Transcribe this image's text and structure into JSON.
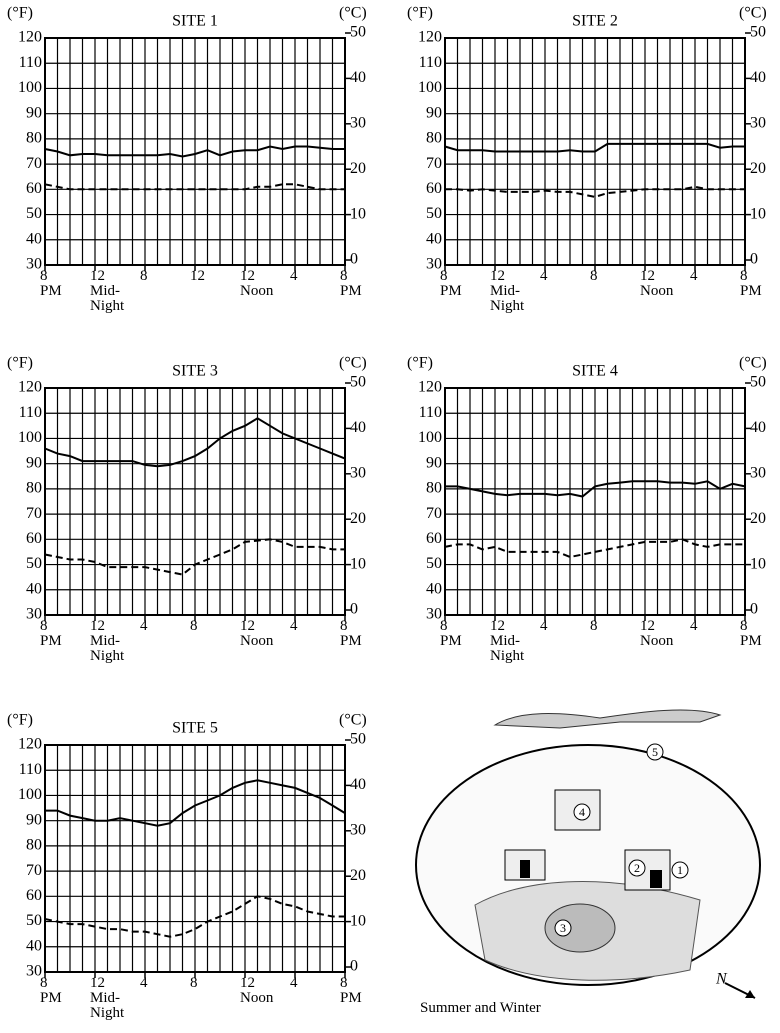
{
  "chart_data": [
    {
      "type": "line",
      "title": "SITE 1",
      "y_label": "(°F)",
      "y2_label": "(°C)",
      "x": [
        0,
        1,
        2,
        3,
        4,
        5,
        6,
        7,
        8,
        9,
        10,
        11,
        12,
        13,
        14,
        15,
        16,
        17,
        18,
        19,
        20,
        21,
        22,
        23,
        24
      ],
      "xlim": [
        0,
        24
      ],
      "xticks": [
        {
          "value": 0,
          "label": "8\nPM"
        },
        {
          "value": 4,
          "label": "12\nMid-\nNight"
        },
        8,
        12,
        {
          "value": 16,
          "label": "12\nNoon"
        },
        {
          "value": 20,
          "label": "4"
        },
        {
          "value": 24,
          "label": "8\nPM"
        }
      ],
      "minor_xticks": [
        0,
        1,
        2,
        3,
        4,
        5,
        6,
        7,
        8,
        9,
        10,
        11,
        12,
        13,
        14,
        15,
        16,
        17,
        18,
        19,
        20,
        21,
        22,
        23,
        24
      ],
      "ylim": [
        30,
        120
      ],
      "yticks": [
        30,
        40,
        50,
        60,
        70,
        80,
        90,
        100,
        110,
        120
      ],
      "y2lim": [
        -1.1,
        48.9
      ],
      "y2ticks": [
        0,
        10,
        20,
        30,
        40,
        50
      ],
      "grid": true,
      "series": [
        {
          "color": "#000",
          "style": "solid",
          "values": [
            76,
            75,
            73.5,
            74,
            74,
            73.5,
            73.5,
            73.5,
            73.5,
            73.5,
            74,
            73,
            74,
            75.5,
            73.5,
            75,
            75.5,
            75.5,
            77,
            76,
            77,
            77,
            76.5,
            76,
            76
          ]
        },
        {
          "color": "#000",
          "style": "dashed",
          "values": [
            62,
            61,
            60,
            60,
            60,
            60,
            60,
            60,
            60,
            60,
            60,
            60,
            60,
            60,
            60,
            60,
            60,
            61,
            61,
            62,
            62,
            61,
            60,
            60,
            60
          ]
        }
      ]
    },
    {
      "type": "line",
      "title": "SITE 2",
      "y_label": "(°F)",
      "y2_label": "(°C)",
      "x": [
        0,
        1,
        2,
        3,
        4,
        5,
        6,
        7,
        8,
        9,
        10,
        11,
        12,
        13,
        14,
        15,
        16,
        17,
        18,
        19,
        20,
        21,
        22,
        23,
        24
      ],
      "xlim": [
        0,
        24
      ],
      "xticks": [
        {
          "value": 0,
          "label": "8\nPM"
        },
        {
          "value": 4,
          "label": "12\nMid-\nNight"
        },
        {
          "value": 8,
          "label": "4"
        },
        {
          "value": 12,
          "label": "8"
        },
        {
          "value": 16,
          "label": "12\nNoon"
        },
        {
          "value": 20,
          "label": "4"
        },
        {
          "value": 24,
          "label": "8\nPM"
        }
      ],
      "minor_xticks": [
        0,
        1,
        2,
        3,
        4,
        5,
        6,
        7,
        8,
        9,
        10,
        11,
        12,
        13,
        14,
        15,
        16,
        17,
        18,
        19,
        20,
        21,
        22,
        23,
        24
      ],
      "ylim": [
        30,
        120
      ],
      "yticks": [
        30,
        40,
        50,
        60,
        70,
        80,
        90,
        100,
        110,
        120
      ],
      "y2lim": [
        -1.1,
        48.9
      ],
      "y2ticks": [
        0,
        10,
        20,
        30,
        40,
        50
      ],
      "grid": true,
      "series": [
        {
          "color": "#000",
          "style": "solid",
          "values": [
            77,
            75.5,
            75.5,
            75.5,
            75,
            75,
            75,
            75,
            75,
            75,
            75.5,
            75,
            75,
            78,
            78,
            78,
            78,
            78,
            78,
            78,
            78,
            78,
            76.5,
            77,
            77
          ]
        },
        {
          "color": "#000",
          "style": "dashed",
          "values": [
            60,
            60,
            59.5,
            60,
            59.5,
            59,
            59,
            59,
            59.5,
            59,
            59,
            58,
            57,
            58.5,
            59,
            59.5,
            60,
            60,
            60,
            60,
            61,
            60,
            60,
            60,
            60
          ]
        }
      ]
    },
    {
      "type": "line",
      "title": "SITE 3",
      "y_label": "(°F)",
      "y2_label": "(°C)",
      "x": [
        0,
        1,
        2,
        3,
        4,
        5,
        6,
        7,
        8,
        9,
        10,
        11,
        12,
        13,
        14,
        15,
        16,
        17,
        18,
        19,
        20,
        21,
        22,
        23,
        24
      ],
      "xlim": [
        0,
        24
      ],
      "xticks": [
        {
          "value": 0,
          "label": "8\nPM"
        },
        {
          "value": 4,
          "label": "12\nMid-\nNight"
        },
        {
          "value": 8,
          "label": "4"
        },
        {
          "value": 12,
          "label": "8"
        },
        {
          "value": 16,
          "label": "12\nNoon"
        },
        {
          "value": 20,
          "label": "4"
        },
        {
          "value": 24,
          "label": "8\nPM"
        }
      ],
      "minor_xticks": [
        0,
        1,
        2,
        3,
        4,
        5,
        6,
        7,
        8,
        9,
        10,
        11,
        12,
        13,
        14,
        15,
        16,
        17,
        18,
        19,
        20,
        21,
        22,
        23,
        24
      ],
      "ylim": [
        30,
        120
      ],
      "yticks": [
        30,
        40,
        50,
        60,
        70,
        80,
        90,
        100,
        110,
        120
      ],
      "y2lim": [
        -1.1,
        48.9
      ],
      "y2ticks": [
        0,
        10,
        20,
        30,
        40,
        50
      ],
      "grid": true,
      "series": [
        {
          "color": "#000",
          "style": "solid",
          "values": [
            96,
            94,
            93,
            91,
            91,
            91,
            91,
            91,
            89.5,
            89,
            89.5,
            91,
            93,
            96,
            100,
            103,
            105,
            108,
            105,
            102,
            100,
            98,
            96,
            94,
            92
          ]
        },
        {
          "color": "#000",
          "style": "dashed",
          "values": [
            54,
            53,
            52,
            52,
            51,
            49,
            49,
            49,
            49,
            48,
            47,
            46,
            50,
            52,
            54,
            56,
            59,
            59.5,
            60,
            59,
            57,
            57,
            57,
            56,
            56
          ]
        }
      ]
    },
    {
      "type": "line",
      "title": "SITE 4",
      "y_label": "(°F)",
      "y2_label": "(°C)",
      "x": [
        0,
        1,
        2,
        3,
        4,
        5,
        6,
        7,
        8,
        9,
        10,
        11,
        12,
        13,
        14,
        15,
        16,
        17,
        18,
        19,
        20,
        21,
        22,
        23,
        24
      ],
      "xlim": [
        0,
        24
      ],
      "xticks": [
        {
          "value": 0,
          "label": "8\nPM"
        },
        {
          "value": 4,
          "label": "12\nMid-\nNight"
        },
        {
          "value": 8,
          "label": "4"
        },
        {
          "value": 12,
          "label": "8"
        },
        {
          "value": 16,
          "label": "12\nNoon"
        },
        {
          "value": 20,
          "label": "4"
        },
        {
          "value": 24,
          "label": "8\nPM"
        }
      ],
      "minor_xticks": [
        0,
        1,
        2,
        3,
        4,
        5,
        6,
        7,
        8,
        9,
        10,
        11,
        12,
        13,
        14,
        15,
        16,
        17,
        18,
        19,
        20,
        21,
        22,
        23,
        24
      ],
      "ylim": [
        30,
        120
      ],
      "yticks": [
        30,
        40,
        50,
        60,
        70,
        80,
        90,
        100,
        110,
        120
      ],
      "y2lim": [
        -1.1,
        48.9
      ],
      "y2ticks": [
        0,
        10,
        20,
        30,
        40,
        50
      ],
      "grid": true,
      "series": [
        {
          "color": "#000",
          "style": "solid",
          "values": [
            81,
            81,
            80,
            79,
            78,
            77.5,
            78,
            78,
            78,
            77.5,
            78,
            77,
            81,
            82,
            82.5,
            83,
            83,
            83,
            82.5,
            82.5,
            82,
            83,
            80,
            82,
            81
          ]
        },
        {
          "color": "#000",
          "style": "dashed",
          "values": [
            57,
            58,
            58,
            56,
            57,
            55,
            55,
            55,
            55,
            55,
            53,
            54,
            55,
            56,
            57,
            58,
            59,
            59,
            59,
            60,
            58,
            57,
            58,
            58,
            58
          ]
        }
      ]
    },
    {
      "type": "line",
      "title": "SITE 5",
      "y_label": "(°F)",
      "y2_label": "(°C)",
      "x": [
        0,
        1,
        2,
        3,
        4,
        5,
        6,
        7,
        8,
        9,
        10,
        11,
        12,
        13,
        14,
        15,
        16,
        17,
        18,
        19,
        20,
        21,
        22,
        23,
        24
      ],
      "xlim": [
        0,
        24
      ],
      "xticks": [
        {
          "value": 0,
          "label": "8\nPM"
        },
        {
          "value": 4,
          "label": "12\nMid-\nNight"
        },
        {
          "value": 8,
          "label": "4"
        },
        {
          "value": 12,
          "label": "8"
        },
        {
          "value": 16,
          "label": "12\nNoon"
        },
        {
          "value": 20,
          "label": "4"
        },
        {
          "value": 24,
          "label": "8\nPM"
        }
      ],
      "minor_xticks": [
        0,
        1,
        2,
        3,
        4,
        5,
        6,
        7,
        8,
        9,
        10,
        11,
        12,
        13,
        14,
        15,
        16,
        17,
        18,
        19,
        20,
        21,
        22,
        23,
        24
      ],
      "ylim": [
        30,
        120
      ],
      "yticks": [
        30,
        40,
        50,
        60,
        70,
        80,
        90,
        100,
        110,
        120
      ],
      "y2lim": [
        -1.1,
        48.9
      ],
      "y2ticks": [
        0,
        10,
        20,
        30,
        40,
        50
      ],
      "grid": true,
      "series": [
        {
          "color": "#000",
          "style": "solid",
          "values": [
            94,
            94,
            92,
            91,
            90,
            90,
            91,
            90,
            89,
            88,
            89,
            93,
            96,
            98,
            100,
            103,
            105,
            106,
            105,
            104,
            103,
            101,
            99,
            96,
            93
          ]
        },
        {
          "color": "#000",
          "style": "dashed",
          "values": [
            51,
            50,
            49,
            49,
            48,
            47,
            47,
            46,
            46,
            45,
            44,
            45,
            47,
            50,
            52,
            54,
            57,
            60,
            59,
            57,
            56,
            54,
            53,
            52,
            52
          ]
        }
      ]
    }
  ],
  "illustration": {
    "caption": "Summer and Winter",
    "markers": [
      "1",
      "2",
      "3",
      "4",
      "5"
    ],
    "north": "N"
  }
}
